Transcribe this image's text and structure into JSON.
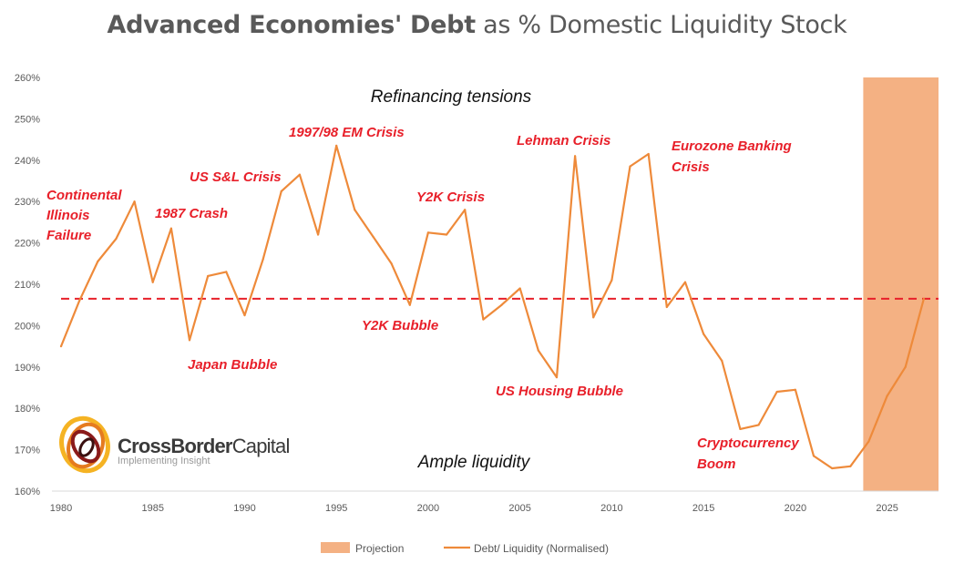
{
  "title": {
    "bold_part": "Advanced Economies' Debt",
    "rest": " as % Domestic Liquidity Stock"
  },
  "logo": {
    "name_bold": "CrossBorder",
    "name_rest": "Capital",
    "tagline": "Implementing Insight"
  },
  "colors": {
    "line": "#ee8a3a",
    "projection": "#f4b183",
    "average_line": "#e8202a",
    "annotation": "#e8202a"
  },
  "chart_data": {
    "type": "line",
    "title": "Advanced Economies' Debt as % Domestic Liquidity Stock",
    "xlim": [
      1980,
      2027.8
    ],
    "ylim": [
      160,
      260
    ],
    "x_ticks": [
      "1980",
      "1985",
      "1990",
      "1995",
      "2000",
      "2005",
      "2010",
      "2015",
      "2020",
      "2025"
    ],
    "y_ticks": [
      "160%",
      "170%",
      "180%",
      "190%",
      "200%",
      "210%",
      "220%",
      "230%",
      "240%",
      "250%",
      "260%"
    ],
    "grid": false,
    "legend_position": "bottom",
    "series": [
      {
        "name": "Debt/ Liquidity (Normalised)",
        "x": [
          1980,
          1981,
          1982,
          1983,
          1984,
          1985,
          1986,
          1987,
          1988,
          1989,
          1990,
          1991,
          1992,
          1993,
          1994,
          1995,
          1996,
          1997,
          1998,
          1999,
          2000,
          2001,
          2002,
          2003,
          2004,
          2005,
          2006,
          2007,
          2008,
          2009,
          2010,
          2011,
          2012,
          2013,
          2014,
          2015,
          2016,
          2017,
          2018,
          2019,
          2020,
          2021,
          2022,
          2023,
          2024,
          2025,
          2026,
          2027
        ],
        "values": [
          195,
          206,
          215.5,
          221,
          230,
          210.5,
          223.5,
          196.5,
          212,
          213,
          202.5,
          216,
          232.5,
          236.5,
          222,
          243.5,
          228,
          221.5,
          215,
          205,
          222.5,
          222,
          228,
          201.5,
          205,
          209,
          194,
          187.5,
          241,
          202,
          211,
          238.5,
          241.5,
          204.5,
          210.5,
          198,
          191.5,
          175,
          176,
          184,
          184.5,
          168.5,
          165.5,
          166,
          172,
          183,
          190,
          206.5
        ]
      }
    ],
    "average_line": {
      "value": 206.5,
      "style": "dashed"
    },
    "projection": {
      "name": "Projection",
      "x_start": 2023.7,
      "x_end": 2027.8
    },
    "zone_labels": [
      {
        "text": "Refinancing tensions"
      },
      {
        "text": "Ample liquidity"
      }
    ],
    "annotations": [
      {
        "lines": [
          "Continental",
          "Illinois",
          "Failure"
        ]
      },
      {
        "lines": [
          "1987 Crash"
        ]
      },
      {
        "lines": [
          "US S&L Crisis"
        ]
      },
      {
        "lines": [
          "1997/98 EM Crisis"
        ]
      },
      {
        "lines": [
          "Y2K Crisis"
        ]
      },
      {
        "lines": [
          "Lehman Crisis"
        ]
      },
      {
        "lines": [
          "Eurozone Banking",
          "Crisis"
        ]
      },
      {
        "lines": [
          "Japan Bubble"
        ]
      },
      {
        "lines": [
          "Y2K Bubble"
        ]
      },
      {
        "lines": [
          "US Housing Bubble"
        ]
      },
      {
        "lines": [
          "Cryptocurrency",
          "Boom"
        ]
      }
    ],
    "legend": [
      "Projection",
      "Debt/ Liquidity (Normalised)"
    ]
  }
}
